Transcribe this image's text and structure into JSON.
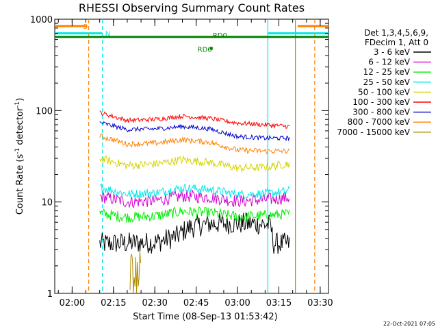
{
  "chart_data": {
    "type": "line",
    "title": "RHESSI Observing Summary Count Rates",
    "xlabel": "Start Time (08-Sep-13 01:53:42)",
    "ylabel_main": "Count Rate (s",
    "ylabel_sup1": "-1",
    "ylabel_mid": " detector",
    "ylabel_sup2": "-1",
    "ylabel_end": ")",
    "footer": "22-Oct-2021 07:05",
    "y_scale": "log",
    "ylim": [
      1,
      1000
    ],
    "xlim": [
      "01:53:42",
      "03:33:00"
    ],
    "x_ticks": [
      "02:00",
      "02:15",
      "02:30",
      "02:45",
      "03:00",
      "03:15",
      "03:30"
    ],
    "y_ticks": [
      "1",
      "10",
      "100",
      "1000"
    ],
    "legend": {
      "header_lines": [
        "Det 1,3,4,5,6,9,",
        "FDecim 1, Att 0"
      ],
      "placement": "right"
    },
    "series": [
      {
        "name": "3 - 6 keV",
        "color": "#000000",
        "points": [
          [
            "02:10:00",
            3.5
          ],
          [
            "02:30:00",
            3.6
          ],
          [
            "02:38:00",
            4.2
          ],
          [
            "02:42:00",
            5.2
          ],
          [
            "02:50:00",
            5.8
          ],
          [
            "02:55:00",
            5.8
          ],
          [
            "03:05:00",
            5.8
          ],
          [
            "03:12:00",
            5.6
          ],
          [
            "03:13:00",
            3.5
          ],
          [
            "03:19:00",
            3.5
          ]
        ]
      },
      {
        "name": "6 - 12 keV",
        "color": "#d400d4",
        "points": [
          [
            "02:10:00",
            11.5
          ],
          [
            "02:20:00",
            10.0
          ],
          [
            "02:30:00",
            10.3
          ],
          [
            "02:40:00",
            11.6
          ],
          [
            "02:50:00",
            11.3
          ],
          [
            "03:00:00",
            10.2
          ],
          [
            "03:10:00",
            10.6
          ],
          [
            "03:19:00",
            11.2
          ]
        ]
      },
      {
        "name": "12 - 25 keV",
        "color": "#00ee00",
        "points": [
          [
            "02:10:00",
            7.5
          ],
          [
            "02:20:00",
            6.8
          ],
          [
            "02:30:00",
            7.0
          ],
          [
            "02:40:00",
            7.9
          ],
          [
            "02:50:00",
            7.6
          ],
          [
            "03:00:00",
            6.9
          ],
          [
            "03:10:00",
            7.1
          ],
          [
            "03:19:00",
            7.4
          ]
        ]
      },
      {
        "name": "25 - 50 keV",
        "color": "#00e8e8",
        "points": [
          [
            "02:10:00",
            14.5
          ],
          [
            "02:20:00",
            12.2
          ],
          [
            "02:30:00",
            12.6
          ],
          [
            "02:40:00",
            14.3
          ],
          [
            "02:50:00",
            13.6
          ],
          [
            "03:00:00",
            12.1
          ],
          [
            "03:10:00",
            12.3
          ],
          [
            "03:19:00",
            13.2
          ]
        ]
      },
      {
        "name": "50 - 100 keV",
        "color": "#d4d400",
        "points": [
          [
            "02:10:00",
            30.0
          ],
          [
            "02:20:00",
            25.0
          ],
          [
            "02:30:00",
            26.0
          ],
          [
            "02:40:00",
            29.0
          ],
          [
            "02:50:00",
            27.0
          ],
          [
            "03:00:00",
            23.5
          ],
          [
            "03:10:00",
            24.0
          ],
          [
            "03:19:00",
            26.5
          ]
        ]
      },
      {
        "name": "100 - 300 keV",
        "color": "#ff0000",
        "points": [
          [
            "02:10:00",
            95.0
          ],
          [
            "02:20:00",
            78.0
          ],
          [
            "02:30:00",
            80.0
          ],
          [
            "02:40:00",
            87.0
          ],
          [
            "02:50:00",
            82.0
          ],
          [
            "03:00:00",
            73.0
          ],
          [
            "03:10:00",
            70.0
          ],
          [
            "03:19:00",
            67.0
          ]
        ]
      },
      {
        "name": "300 - 800 keV",
        "color": "#0000d0",
        "points": [
          [
            "02:10:00",
            74.0
          ],
          [
            "02:20:00",
            62.0
          ],
          [
            "02:30:00",
            63.0
          ],
          [
            "02:40:00",
            67.0
          ],
          [
            "02:50:00",
            63.0
          ],
          [
            "03:00:00",
            52.0
          ],
          [
            "03:10:00",
            50.0
          ],
          [
            "03:19:00",
            50.0
          ]
        ]
      },
      {
        "name": "800 - 7000 keV",
        "color": "#ff8000",
        "points": [
          [
            "02:10:00",
            53.0
          ],
          [
            "02:20:00",
            43.0
          ],
          [
            "02:30:00",
            44.0
          ],
          [
            "02:40:00",
            48.0
          ],
          [
            "02:50:00",
            45.0
          ],
          [
            "03:00:00",
            37.0
          ],
          [
            "03:10:00",
            36.0
          ],
          [
            "03:19:00",
            36.0
          ]
        ]
      },
      {
        "name": "7000 - 15000 keV",
        "color": "#b08a00",
        "points": [
          [
            "02:21:00",
            1.5
          ],
          [
            "02:25:00",
            1.5
          ]
        ]
      }
    ],
    "flags": [
      {
        "label": "S",
        "color": "#ff8000",
        "level": 840
      },
      {
        "label": "N",
        "color": "#00e8e8",
        "level": 700
      },
      {
        "label": "RD0",
        "color": "#008000",
        "level": 640
      },
      {
        "label": "RD6",
        "color": "#008000",
        "level": 560
      }
    ],
    "vertical_markers": [
      {
        "time": "02:06:00",
        "color": "#ff8000",
        "style": "dashed"
      },
      {
        "time": "02:11:00",
        "color": "#00e8e8",
        "style": "dashed"
      },
      {
        "time": "03:11:00",
        "color": "#00e8e8",
        "style": "solid"
      },
      {
        "time": "03:21:00",
        "color": "#b08a00",
        "style": "solid"
      },
      {
        "time": "03:28:00",
        "color": "#ff8000",
        "style": "dashed"
      }
    ]
  }
}
